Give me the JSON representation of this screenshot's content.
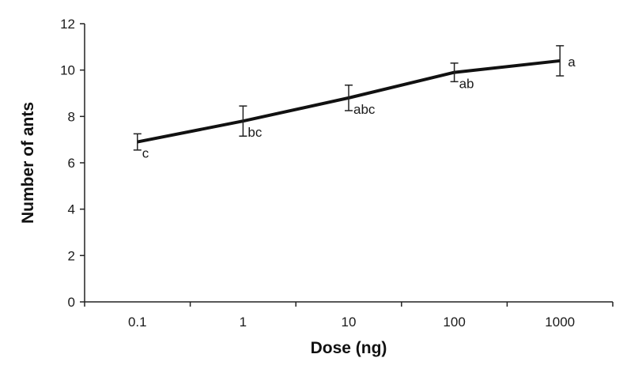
{
  "chart_data": {
    "type": "line",
    "xlabel": "Dose (ng)",
    "ylabel": "Number of ants",
    "x_scale": "log",
    "categories": [
      "0.1",
      "1",
      "10",
      "100",
      "1000"
    ],
    "x": [
      0.1,
      1,
      10,
      100,
      1000
    ],
    "ylim": [
      0,
      12
    ],
    "yticks": [
      "0",
      "2",
      "4",
      "6",
      "8",
      "10",
      "12"
    ],
    "grid": false,
    "series": [
      {
        "values": [
          6.9,
          7.8,
          8.8,
          9.9,
          10.4
        ],
        "error": [
          0.35,
          0.65,
          0.55,
          0.4,
          0.65
        ],
        "labels": [
          "c",
          "bc",
          "abc",
          "ab",
          "a"
        ],
        "color": "#111111"
      }
    ]
  }
}
